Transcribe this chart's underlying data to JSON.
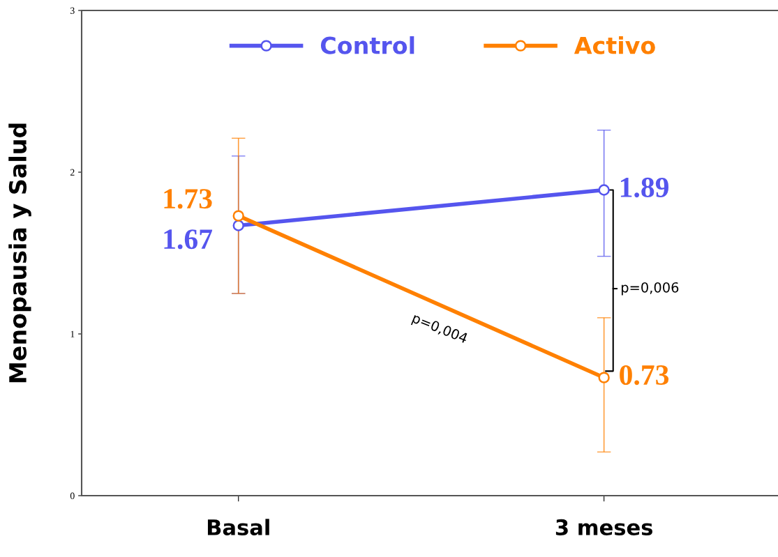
{
  "chart_data": {
    "type": "line",
    "ylabel": "Menopausia y Salud",
    "categories": [
      "Basal",
      "3 meses"
    ],
    "series": [
      {
        "name": "Control",
        "color": "#5555ee",
        "values": [
          1.67,
          1.89
        ],
        "errors": [
          [
            1.25,
            2.1
          ],
          [
            1.48,
            2.26
          ]
        ]
      },
      {
        "name": "Activo",
        "color": "#ff8000",
        "values": [
          1.73,
          0.73
        ],
        "errors": [
          [
            1.25,
            2.21
          ],
          [
            0.27,
            1.1
          ]
        ]
      }
    ],
    "ylim": [
      0,
      3
    ],
    "yticks": [
      0,
      1,
      2,
      3
    ],
    "data_labels": true,
    "marker": "circle",
    "line_style": "solid",
    "grid": false,
    "legend": "top",
    "annotations": [
      "p=0,004",
      "p=0,006"
    ]
  }
}
